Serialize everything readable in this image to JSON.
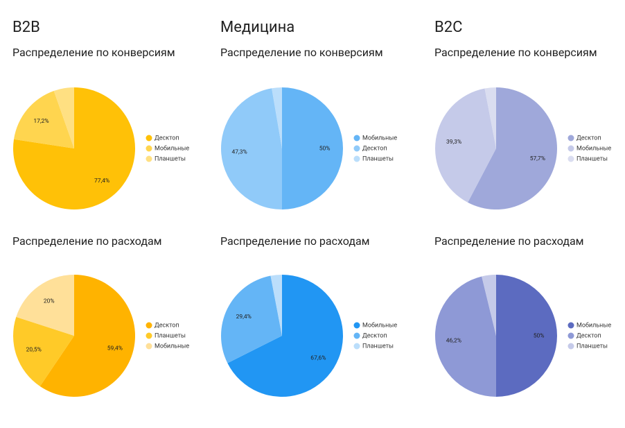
{
  "columns": [
    "B2B",
    "Медицина",
    "B2C"
  ],
  "chart_data": [
    {
      "type": "pie",
      "title": "Распределение по конверсиям",
      "categories": [
        "Десктоп",
        "Мобильные",
        "Планшеты"
      ],
      "values": [
        77.4,
        17.2,
        5.4
      ],
      "value_labels": [
        "77,4%",
        "17,2%",
        null
      ],
      "colors": [
        "#FFC107",
        "#FFD54F",
        "#FFE082"
      ]
    },
    {
      "type": "pie",
      "title": "Распределение по конверсиям",
      "categories": [
        "Мобильные",
        "Десктоп",
        "Планшеты"
      ],
      "values": [
        50,
        47.3,
        2.7
      ],
      "value_labels": [
        "50%",
        "47,3%",
        null
      ],
      "colors": [
        "#64B5F6",
        "#90CAF9",
        "#BBDEFB"
      ]
    },
    {
      "type": "pie",
      "title": "Распределение по конверсиям",
      "categories": [
        "Десктоп",
        "Мобильные",
        "Планшеты"
      ],
      "values": [
        57.7,
        39.3,
        3.0
      ],
      "value_labels": [
        "57,7%",
        "39,3%",
        null
      ],
      "colors": [
        "#9FA8DA",
        "#C5CAE9",
        "#DADDF0"
      ]
    },
    {
      "type": "pie",
      "title": "Распределение по расходам",
      "categories": [
        "Десктоп",
        "Планшеты",
        "Мобильные"
      ],
      "values": [
        59.4,
        20.5,
        20
      ],
      "value_labels": [
        "59,4%",
        "20,5%",
        "20%"
      ],
      "colors": [
        "#FFB300",
        "#FFCA28",
        "#FFE099"
      ]
    },
    {
      "type": "pie",
      "title": "Распределение по расходам",
      "categories": [
        "Мобильные",
        "Десктоп",
        "Планшеты"
      ],
      "values": [
        67.6,
        29.4,
        3.0
      ],
      "value_labels": [
        "67,6%",
        "29,4%",
        null
      ],
      "colors": [
        "#2196F3",
        "#64B5F6",
        "#BBDEFB"
      ]
    },
    {
      "type": "pie",
      "title": "Распределение по расходам",
      "categories": [
        "Мобильные",
        "Десктоп",
        "Планшеты"
      ],
      "values": [
        50,
        46.2,
        3.8
      ],
      "value_labels": [
        "50%",
        "46,2%",
        null
      ],
      "colors": [
        "#5C6BC0",
        "#8E99D6",
        "#C5CAE9"
      ]
    }
  ]
}
